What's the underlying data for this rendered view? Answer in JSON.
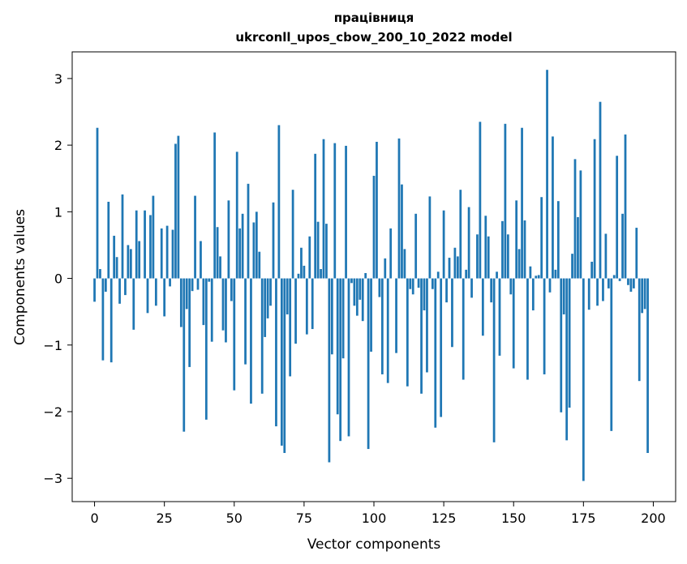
{
  "chart_data": {
    "type": "bar",
    "title": "працівниця",
    "subtitle": "ukrconll_upos_cbow_200_10_2022 model",
    "xlabel": "Vector components",
    "ylabel": "Components values",
    "xlim": [
      -8,
      208
    ],
    "ylim": [
      -3.35,
      3.4
    ],
    "xticks": [
      0,
      25,
      50,
      75,
      100,
      125,
      150,
      175,
      200
    ],
    "xtick_labels": [
      "0",
      "25",
      "50",
      "75",
      "100",
      "125",
      "150",
      "175",
      "200"
    ],
    "yticks": [
      -3,
      -2,
      -1,
      0,
      1,
      2,
      3
    ],
    "ytick_labels": [
      "−3",
      "−2",
      "−1",
      "0",
      "1",
      "2",
      "3"
    ],
    "grid": false,
    "legend": "none",
    "bar_color": "#1f77b4",
    "values": [
      -0.35,
      2.26,
      0.14,
      -1.23,
      -0.2,
      1.15,
      -1.26,
      0.64,
      0.32,
      -0.38,
      1.26,
      -0.25,
      0.5,
      0.44,
      -0.77,
      1.02,
      0.56,
      0.0,
      1.02,
      -0.52,
      0.95,
      1.24,
      -0.41,
      0.0,
      0.75,
      -0.57,
      0.79,
      -0.12,
      0.73,
      2.02,
      2.14,
      -0.73,
      -2.3,
      -0.46,
      -1.33,
      -0.19,
      1.24,
      -0.17,
      0.56,
      -0.7,
      -2.12,
      -0.05,
      -0.95,
      2.19,
      0.77,
      0.33,
      -0.78,
      -0.96,
      1.17,
      -0.34,
      -1.68,
      1.9,
      0.75,
      0.97,
      -1.29,
      1.42,
      -1.88,
      0.84,
      1.0,
      0.4,
      -1.73,
      -0.88,
      -0.6,
      -0.41,
      1.14,
      -2.22,
      2.3,
      -2.51,
      -2.62,
      -0.54,
      -1.47,
      1.33,
      -0.98,
      0.07,
      0.46,
      0.19,
      -0.84,
      0.63,
      -0.76,
      1.87,
      0.85,
      0.14,
      2.09,
      0.82,
      -2.76,
      -1.14,
      2.03,
      -2.04,
      -2.44,
      -1.2,
      1.99,
      -2.37,
      -0.07,
      -0.41,
      -0.56,
      -0.32,
      -0.64,
      0.08,
      -2.56,
      -1.1,
      1.54,
      2.05,
      -0.28,
      -1.44,
      0.3,
      -1.57,
      0.75,
      0.0,
      -1.12,
      2.1,
      1.41,
      0.44,
      -1.62,
      -0.16,
      -0.24,
      0.97,
      -0.14,
      -1.73,
      -0.48,
      -1.41,
      1.23,
      -0.16,
      -2.24,
      0.1,
      -2.08,
      1.02,
      -0.36,
      0.31,
      -1.03,
      0.46,
      0.33,
      1.33,
      -1.52,
      0.13,
      1.07,
      -0.29,
      0.0,
      0.66,
      2.35,
      -0.86,
      0.94,
      0.63,
      -0.36,
      -2.46,
      0.1,
      -1.16,
      0.86,
      2.32,
      0.66,
      -0.24,
      -1.35,
      1.17,
      0.44,
      2.26,
      0.87,
      -1.52,
      0.18,
      -0.48,
      0.04,
      0.05,
      1.22,
      -1.44,
      3.13,
      -0.21,
      2.13,
      0.13,
      1.16,
      -2.01,
      -0.54,
      -2.43,
      -1.94,
      0.37,
      1.79,
      0.92,
      1.62,
      -3.04,
      0.0,
      -0.47,
      0.25,
      2.09,
      -0.41,
      2.65,
      -0.34,
      0.67,
      -0.15,
      -2.29,
      0.05,
      1.84,
      -0.04,
      0.97,
      2.16,
      -0.1,
      -0.2,
      -0.15,
      0.76,
      -1.54,
      -0.52,
      -0.46,
      -2.62
    ]
  }
}
